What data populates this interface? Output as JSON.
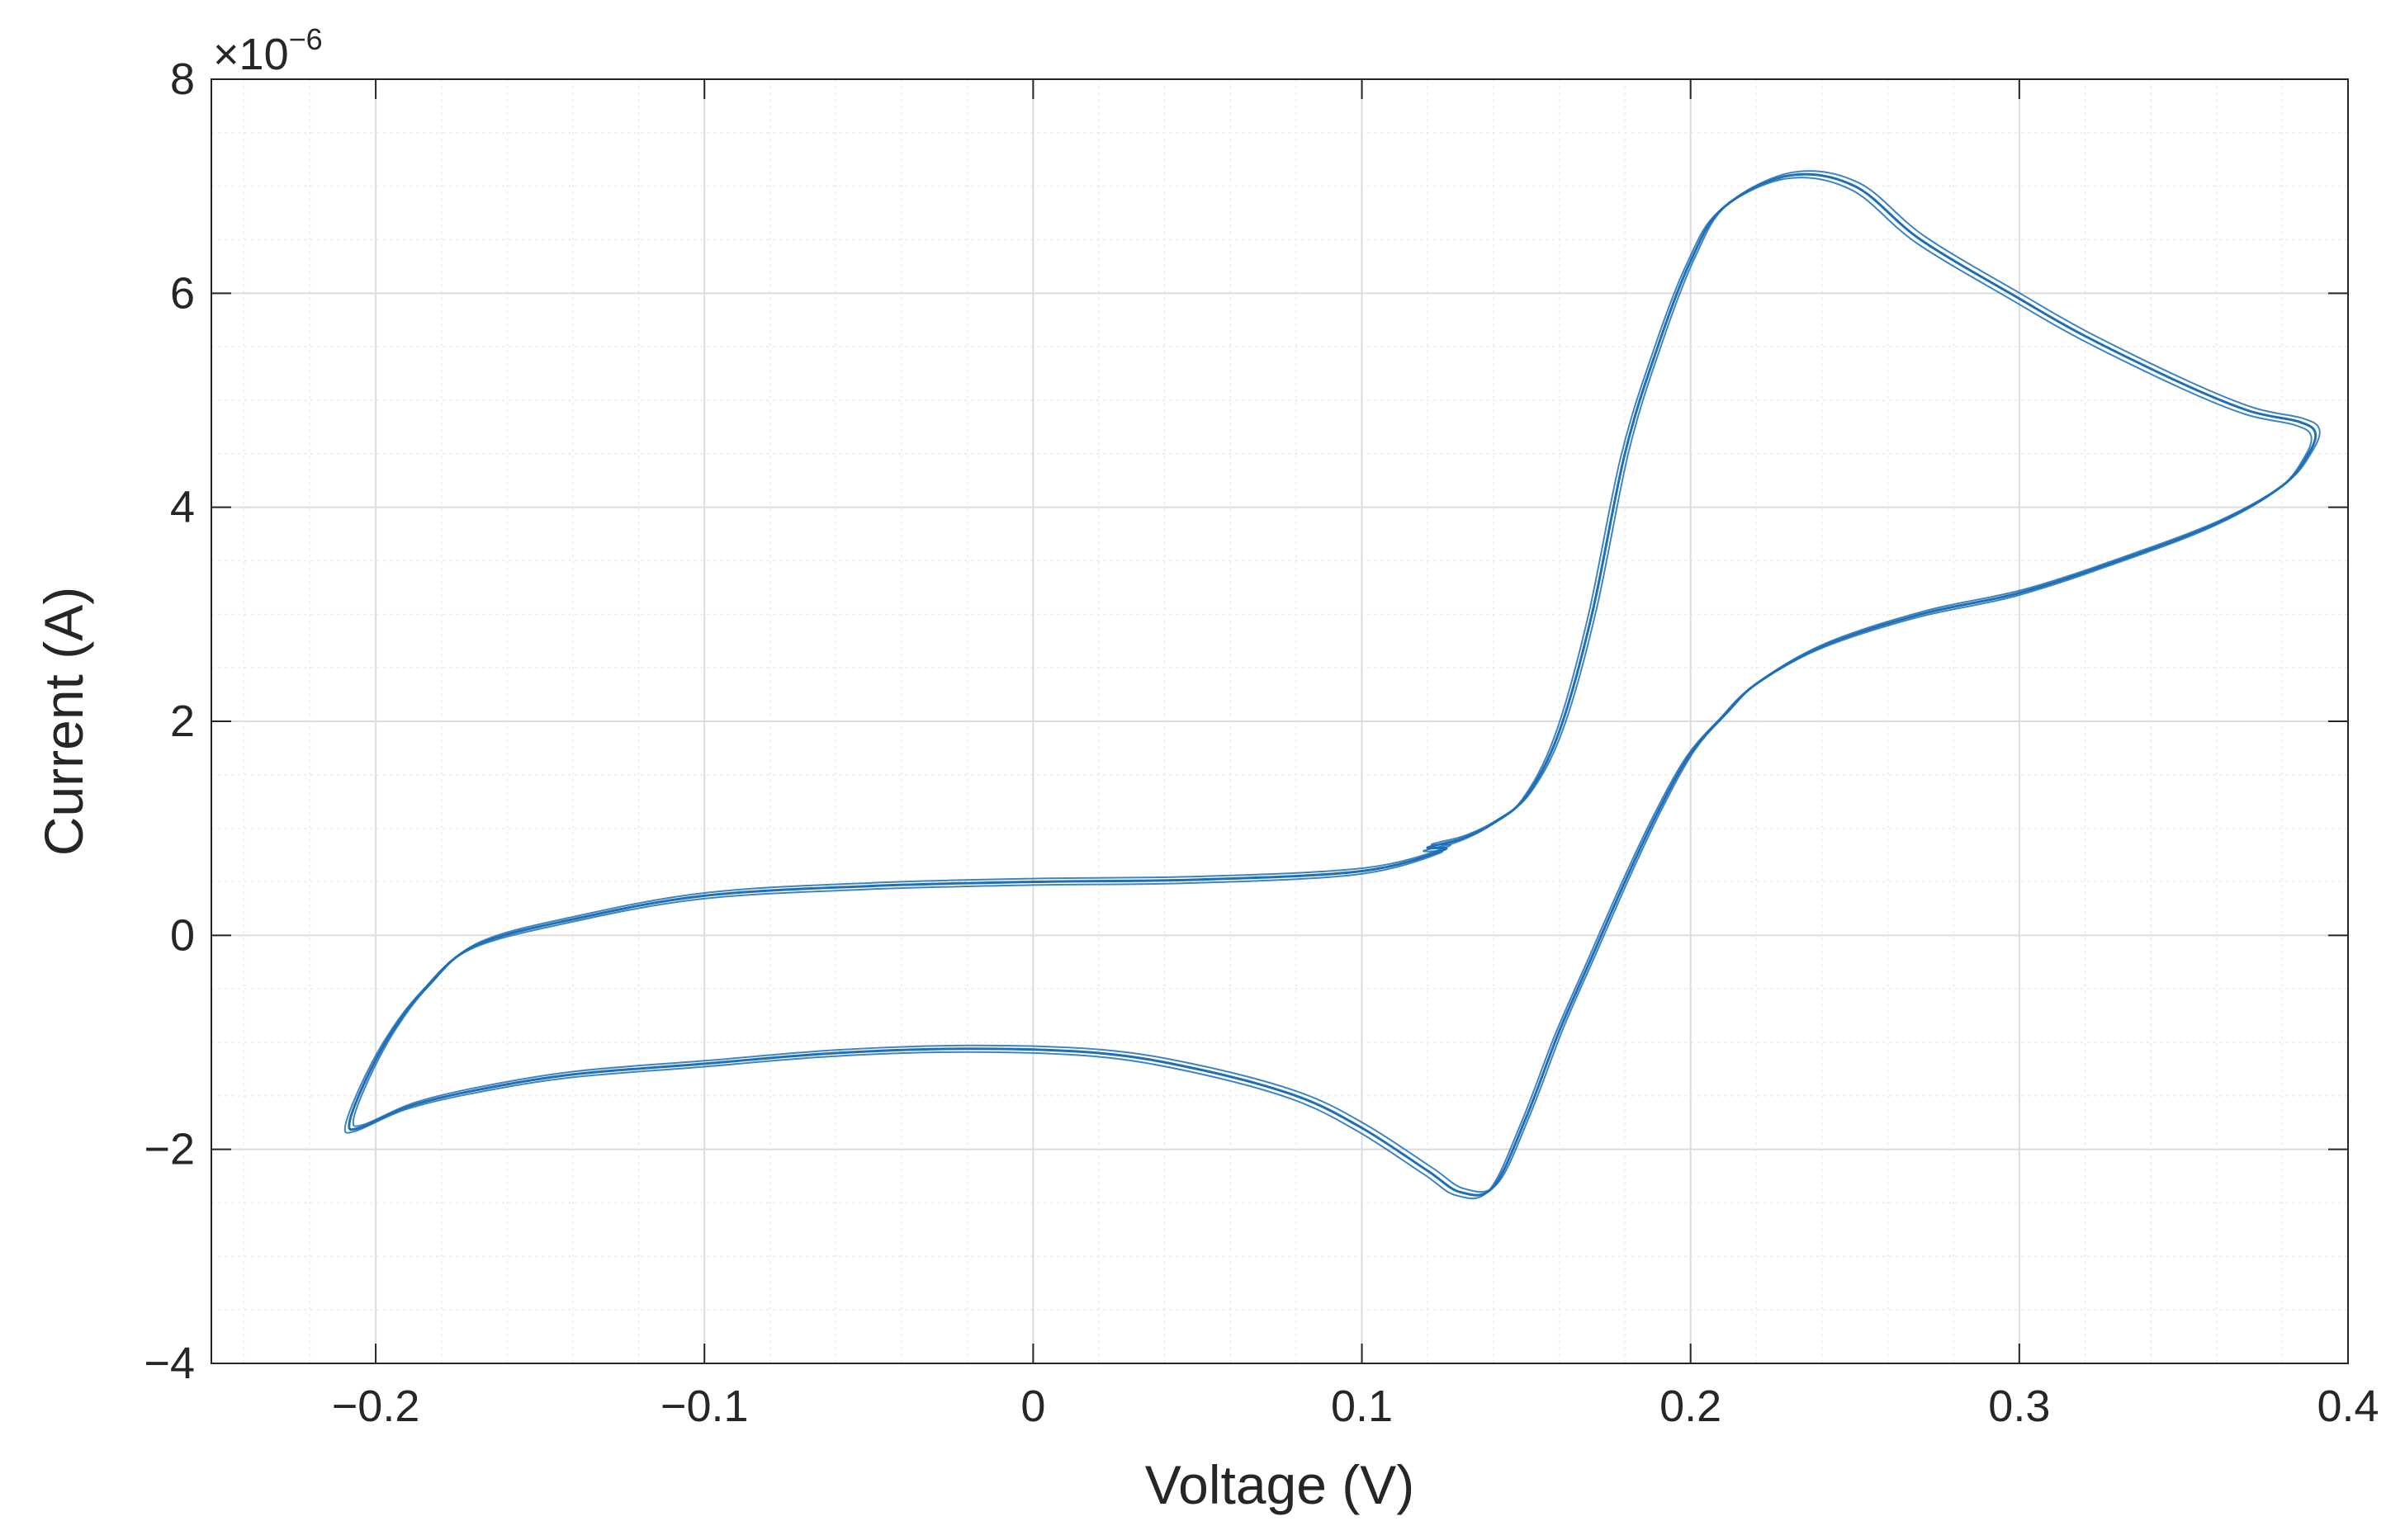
{
  "chart_data": {
    "type": "line",
    "title": "",
    "xlabel": "Voltage (V)",
    "ylabel": "Current (A)",
    "y_exponent_label": {
      "times": "×10",
      "power": "−6"
    },
    "xlim": [
      -0.25,
      0.4
    ],
    "ylim": [
      -4,
      8
    ],
    "x_ticks": [
      -0.2,
      -0.1,
      0,
      0.1,
      0.2,
      0.3,
      0.4
    ],
    "x_tick_labels": [
      "−0.2",
      "−0.1",
      "0",
      "0.1",
      "0.2",
      "0.3",
      "0.4"
    ],
    "y_ticks": [
      -4,
      -2,
      0,
      2,
      4,
      6,
      8
    ],
    "y_tick_labels": [
      "−4",
      "−2",
      "0",
      "2",
      "4",
      "6",
      "8"
    ],
    "y_unit_scale": "1e-6",
    "grid": true,
    "minor_grid": true,
    "color": "#1f6fb5",
    "series": [
      {
        "name": "",
        "x": [
          0.125,
          0.1,
          0.05,
          0.0,
          -0.05,
          -0.1,
          -0.14,
          -0.17,
          -0.185,
          -0.195,
          -0.203,
          -0.208,
          -0.205,
          -0.19,
          -0.17,
          -0.14,
          -0.1,
          -0.06,
          -0.02,
          0.02,
          0.05,
          0.08,
          0.1,
          0.12,
          0.13,
          0.14,
          0.15,
          0.16,
          0.17,
          0.18,
          0.19,
          0.2,
          0.21,
          0.22,
          0.24,
          0.27,
          0.3,
          0.33,
          0.36,
          0.38,
          0.388,
          0.39,
          0.385,
          0.37,
          0.35,
          0.32,
          0.3,
          0.27,
          0.25,
          0.23,
          0.21,
          0.2,
          0.19,
          0.18,
          0.17,
          0.16,
          0.15,
          0.14,
          0.13,
          0.12
        ],
        "y": [
          0.8,
          0.6,
          0.52,
          0.5,
          0.46,
          0.37,
          0.15,
          -0.1,
          -0.5,
          -0.9,
          -1.35,
          -1.75,
          -1.8,
          -1.6,
          -1.45,
          -1.3,
          -1.2,
          -1.1,
          -1.06,
          -1.1,
          -1.25,
          -1.5,
          -1.8,
          -2.2,
          -2.4,
          -2.35,
          -1.7,
          -0.9,
          -0.2,
          0.5,
          1.15,
          1.7,
          2.05,
          2.35,
          2.7,
          3.0,
          3.2,
          3.5,
          3.85,
          4.2,
          4.5,
          4.7,
          4.8,
          4.9,
          5.15,
          5.6,
          5.95,
          6.5,
          7.0,
          7.1,
          6.8,
          6.3,
          5.5,
          4.5,
          3.0,
          1.9,
          1.3,
          1.05,
          0.9,
          0.82
        ]
      }
    ]
  }
}
